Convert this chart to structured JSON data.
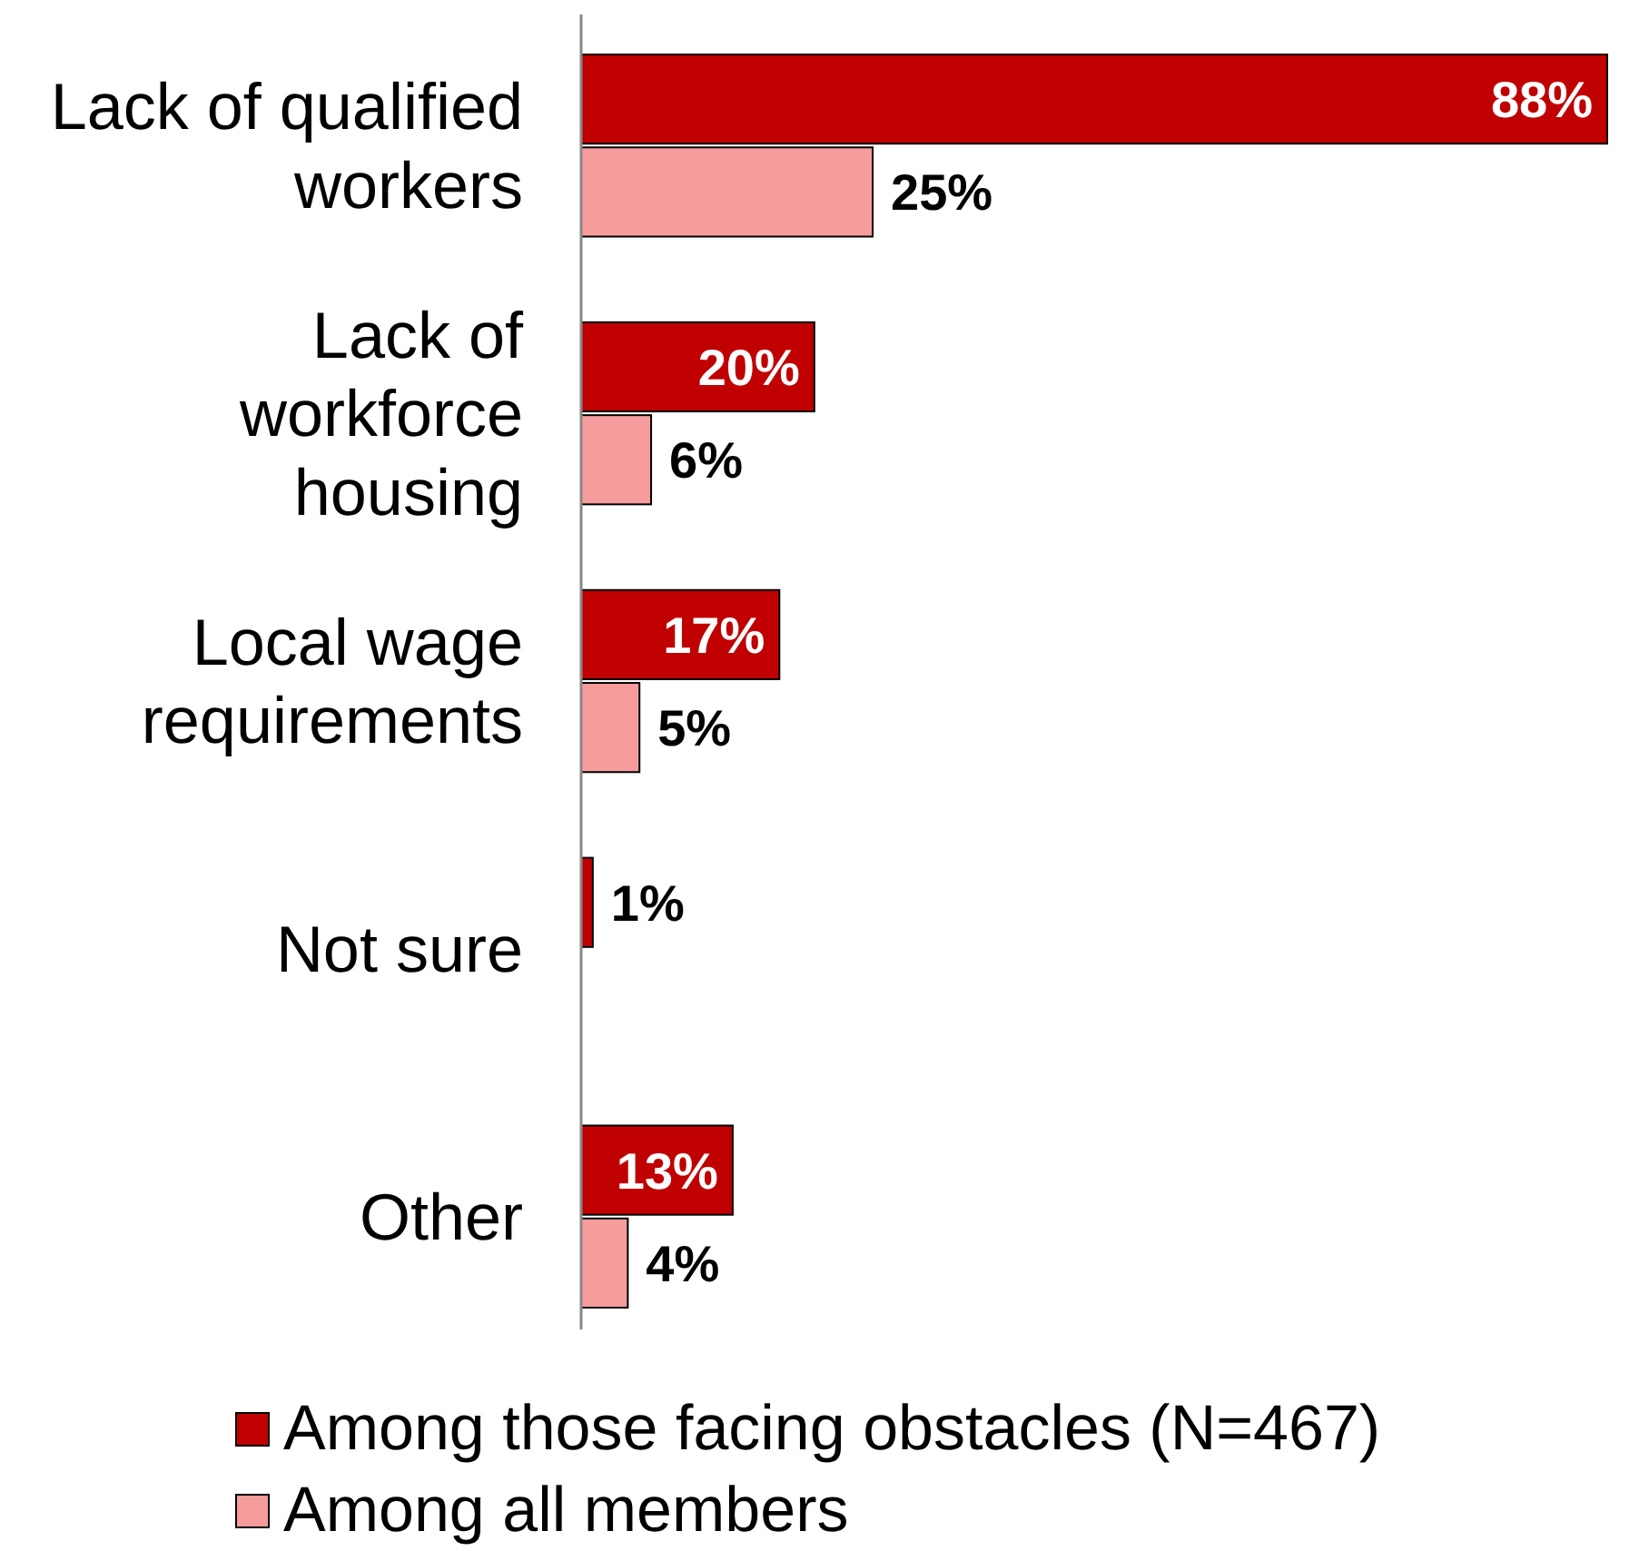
{
  "chart_data": {
    "type": "bar",
    "orientation": "horizontal",
    "categories": [
      "Lack of qualified workers",
      "Lack of workforce housing",
      "Local wage requirements",
      "Not sure",
      "Other"
    ],
    "series": [
      {
        "name": "Among those facing obstacles (N=467)",
        "color": "#c00000",
        "values": [
          88,
          20,
          17,
          1,
          13
        ],
        "value_labels": [
          "88%",
          "20%",
          "17%",
          "1%",
          "13%"
        ]
      },
      {
        "name": "Among all members",
        "color": "#f79c9c",
        "values": [
          25,
          6,
          5,
          null,
          4
        ],
        "value_labels": [
          "25%",
          "6%",
          "5%",
          null,
          "4%"
        ]
      }
    ],
    "legend": "bottom",
    "grid": false
  }
}
